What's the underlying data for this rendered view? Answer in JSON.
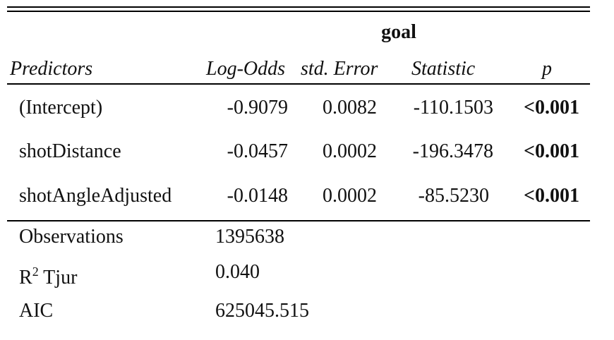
{
  "table": {
    "dependent_variable": "goal",
    "headers": {
      "predictors": "Predictors",
      "estimate": "Log-Odds",
      "std_error": "std. Error",
      "statistic": "Statistic",
      "p": "p"
    },
    "rows": [
      {
        "predictor": "(Intercept)",
        "estimate": "-0.9079",
        "std_error": "0.0082",
        "statistic": "-110.1503",
        "p": "<0.001"
      },
      {
        "predictor": "shotDistance",
        "estimate": "-0.0457",
        "std_error": "0.0002",
        "statistic": "-196.3478",
        "p": "<0.001"
      },
      {
        "predictor": "shotAngleAdjusted",
        "estimate": "-0.0148",
        "std_error": "0.0002",
        "statistic": "-85.5230",
        "p": "<0.001"
      }
    ],
    "summary": {
      "observations_label": "Observations",
      "observations_value": "1395638",
      "r2_label_main": "R",
      "r2_label_sup": "2",
      "r2_label_rest": " Tjur",
      "r2_value": "0.040",
      "aic_label": "AIC",
      "aic_value": "625045.515"
    }
  }
}
